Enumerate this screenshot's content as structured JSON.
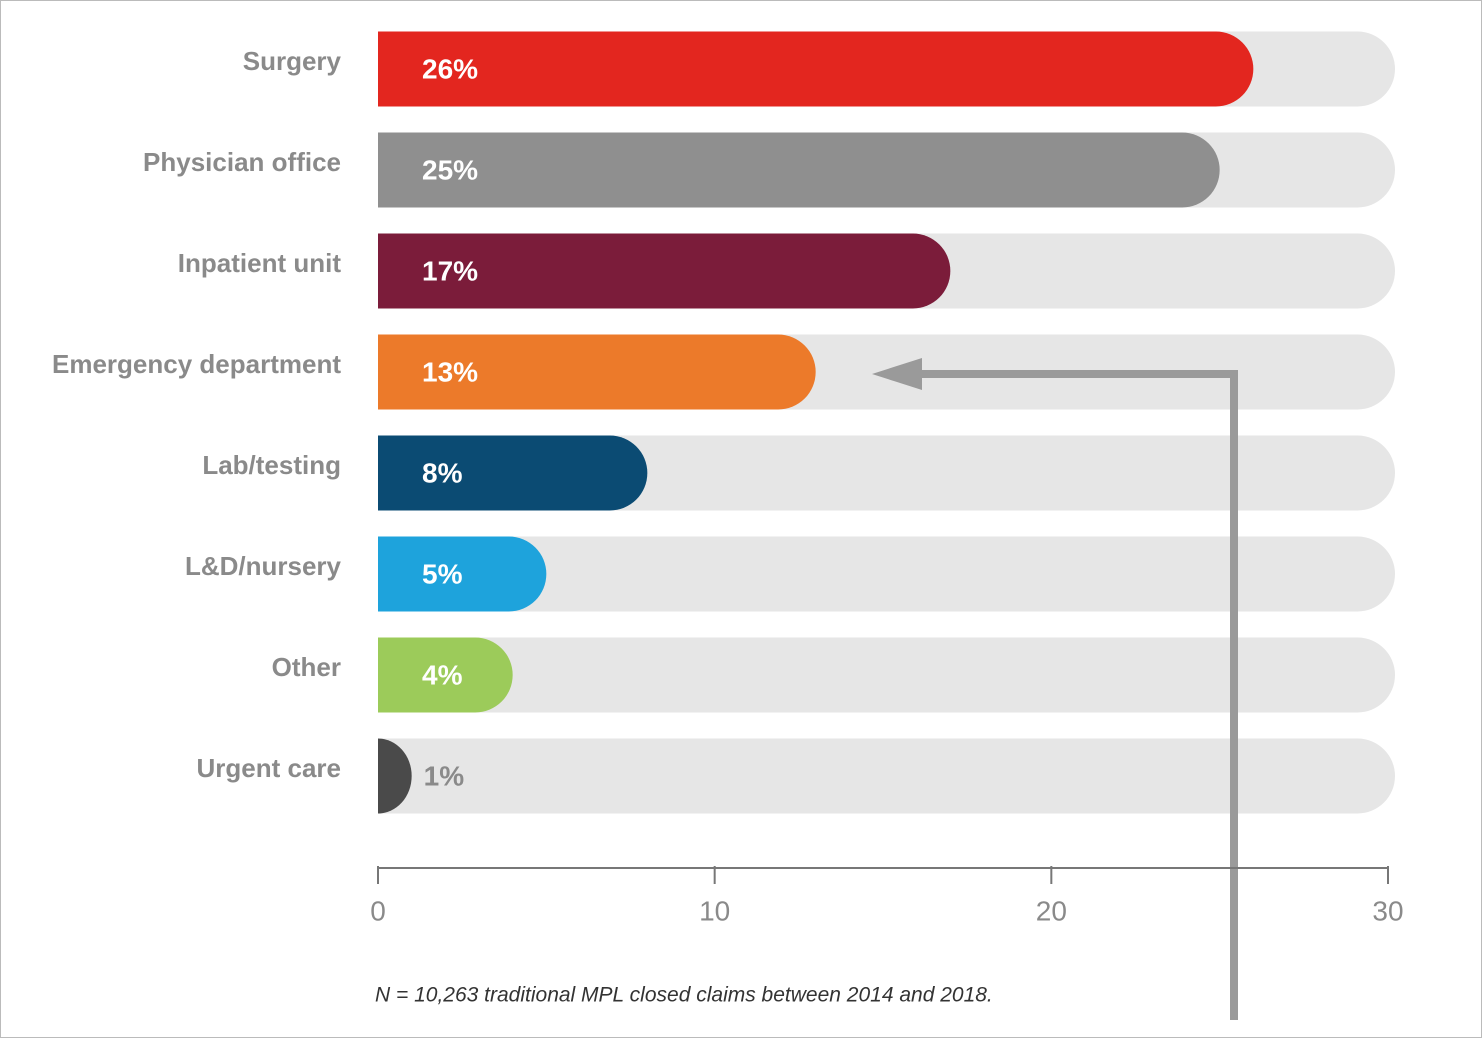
{
  "chart_data": {
    "type": "bar",
    "orientation": "horizontal",
    "categories": [
      "Surgery",
      "Physician office",
      "Inpatient unit",
      "Emergency department",
      "Lab/testing",
      "L&D/nursery",
      "Other",
      "Urgent care"
    ],
    "values": [
      26,
      25,
      17,
      13,
      8,
      5,
      4,
      1
    ],
    "value_labels": [
      "26%",
      "25%",
      "17%",
      "13%",
      "8%",
      "5%",
      "4%",
      "1%"
    ],
    "colors": [
      "#e3261f",
      "#8f8f8f",
      "#7b1c3a",
      "#ec7a2a",
      "#0b4b73",
      "#1ea3dc",
      "#9ccb5a",
      "#4a4a4a"
    ],
    "xlim": [
      0,
      30
    ],
    "xticks": [
      0,
      10,
      20,
      30
    ],
    "note": "N = 10,263 traditional MPL closed claims between 2014 and 2018."
  }
}
